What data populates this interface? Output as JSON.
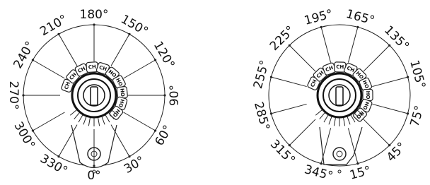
{
  "dials": [
    {
      "angles": [
        {
          "value": 0,
          "label": "0°"
        },
        {
          "value": 30,
          "label": "30°"
        },
        {
          "value": 60,
          "label": "60°"
        },
        {
          "value": 90,
          "label": "90°"
        },
        {
          "value": 120,
          "label": "120°"
        },
        {
          "value": 150,
          "label": "150°"
        },
        {
          "value": 180,
          "label": "180°"
        },
        {
          "value": 210,
          "label": "210°"
        },
        {
          "value": 240,
          "label": "240°"
        },
        {
          "value": 270,
          "label": "270°"
        },
        {
          "value": 300,
          "label": "300°"
        },
        {
          "value": 330,
          "label": "330°"
        }
      ],
      "tabs": [
        "CH",
        "CH",
        "CH",
        "CH",
        "CH",
        "HO",
        "HO",
        "HO",
        "HO",
        "HO"
      ]
    },
    {
      "angles": [
        {
          "value": 15,
          "label": "15°"
        },
        {
          "value": 45,
          "label": "45°"
        },
        {
          "value": 75,
          "label": "75°"
        },
        {
          "value": 105,
          "label": "105°"
        },
        {
          "value": 135,
          "label": "135°"
        },
        {
          "value": 165,
          "label": "165°"
        },
        {
          "value": 195,
          "label": "195°"
        },
        {
          "value": 225,
          "label": "225°"
        },
        {
          "value": 255,
          "label": "255°"
        },
        {
          "value": 285,
          "label": "285°"
        },
        {
          "value": 315,
          "label": "315°"
        },
        {
          "value": 345,
          "label": "345°"
        }
      ],
      "tabs": [
        "CH",
        "CH",
        "CH",
        "CH",
        "CH",
        "HO",
        "HO",
        "HO",
        "HO",
        "HO"
      ]
    }
  ]
}
